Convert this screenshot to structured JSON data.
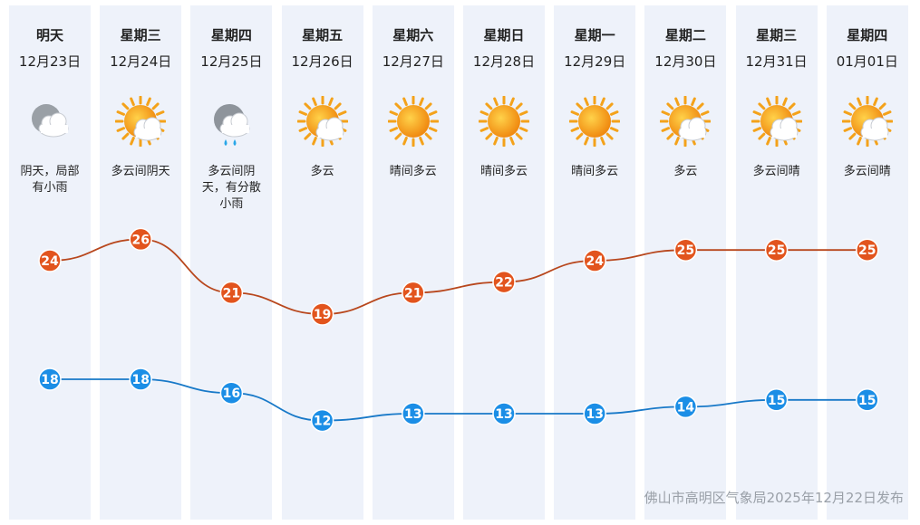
{
  "days": [
    {
      "dow": "明天",
      "date": "12月23日",
      "icon": "overcast-cloud-icon",
      "desc": "阴天，局部有小雨",
      "high": 24,
      "low": 18
    },
    {
      "dow": "星期三",
      "date": "12月24日",
      "icon": "sun-cloud-icon",
      "desc": "多云间阴天",
      "high": 26,
      "low": 18
    },
    {
      "dow": "星期四",
      "date": "12月25日",
      "icon": "cloud-rain-icon",
      "desc": "多云间阴天，有分散小雨",
      "high": 21,
      "low": 16
    },
    {
      "dow": "星期五",
      "date": "12月26日",
      "icon": "sun-cloud-icon",
      "desc": "多云",
      "high": 19,
      "low": 12
    },
    {
      "dow": "星期六",
      "date": "12月27日",
      "icon": "sun-icon",
      "desc": "晴间多云",
      "high": 21,
      "low": 13
    },
    {
      "dow": "星期日",
      "date": "12月28日",
      "icon": "sun-icon",
      "desc": "晴间多云",
      "high": 22,
      "low": 13
    },
    {
      "dow": "星期一",
      "date": "12月29日",
      "icon": "sun-icon",
      "desc": "晴间多云",
      "high": 24,
      "low": 13
    },
    {
      "dow": "星期二",
      "date": "12月30日",
      "icon": "sun-cloud-icon",
      "desc": "多云",
      "high": 25,
      "low": 14
    },
    {
      "dow": "星期三",
      "date": "12月31日",
      "icon": "sun-cloud-icon",
      "desc": "多云间晴",
      "high": 25,
      "low": 15
    },
    {
      "dow": "星期四",
      "date": "01月01日",
      "icon": "sun-cloud-icon",
      "desc": "多云间晴",
      "high": 25,
      "low": 15
    }
  ],
  "footer": "佛山市高明区气象局2025年12月22日发布",
  "colors": {
    "high": "#e2541d",
    "high_line": "#b8471d",
    "low": "#1b8ee6",
    "low_line": "#1879c8",
    "column": "#eef2fa"
  }
}
